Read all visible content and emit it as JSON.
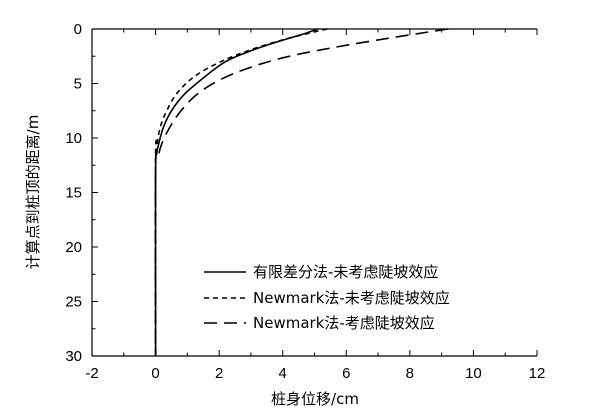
{
  "chart_data": {
    "type": "line",
    "xlabel": "桩身位移/cm",
    "ylabel": "计算点到桩顶的距离/m",
    "xlim": [
      -2,
      12
    ],
    "ylim": [
      0,
      30
    ],
    "y_inverted": true,
    "x_axis_position": "top",
    "x_ticks": [
      -2,
      0,
      2,
      4,
      6,
      8,
      10,
      12
    ],
    "y_ticks": [
      0,
      5,
      10,
      15,
      20,
      25,
      30
    ],
    "grid": false,
    "legend_position": "lower-right",
    "series": [
      {
        "name": "有限差分法-未考虑陡坡效应",
        "style": "solid",
        "x": [
          5.1,
          4.6,
          3.8,
          3.0,
          2.2,
          1.5,
          0.9,
          0.5,
          0.25,
          0.1,
          0.03,
          0.0,
          0.0
        ],
        "y": [
          0,
          0.5,
          1.2,
          2.0,
          3.0,
          4.5,
          6.0,
          7.5,
          9.0,
          10.5,
          11.5,
          13.0,
          30.0
        ]
      },
      {
        "name": "Newmark法-未考虑陡坡效应",
        "style": "short-dash",
        "x": [
          5.4,
          4.8,
          4.0,
          3.1,
          2.2,
          1.3,
          0.7,
          0.35,
          0.15,
          0.05,
          0.0,
          0.0
        ],
        "y": [
          0,
          0.4,
          1.0,
          1.8,
          2.8,
          4.2,
          5.8,
          7.5,
          9.0,
          10.5,
          12.0,
          30.0
        ]
      },
      {
        "name": "Newmark法-考虑陡坡效应",
        "style": "long-dash",
        "x": [
          9.2,
          8.3,
          7.0,
          5.6,
          4.2,
          3.0,
          2.0,
          1.3,
          0.8,
          0.45,
          0.2,
          0.08,
          0.0,
          0.0
        ],
        "y": [
          0,
          0.4,
          1.0,
          1.7,
          2.5,
          3.5,
          4.7,
          6.0,
          7.5,
          9.0,
          10.5,
          11.7,
          13.0,
          30.0
        ]
      }
    ]
  }
}
